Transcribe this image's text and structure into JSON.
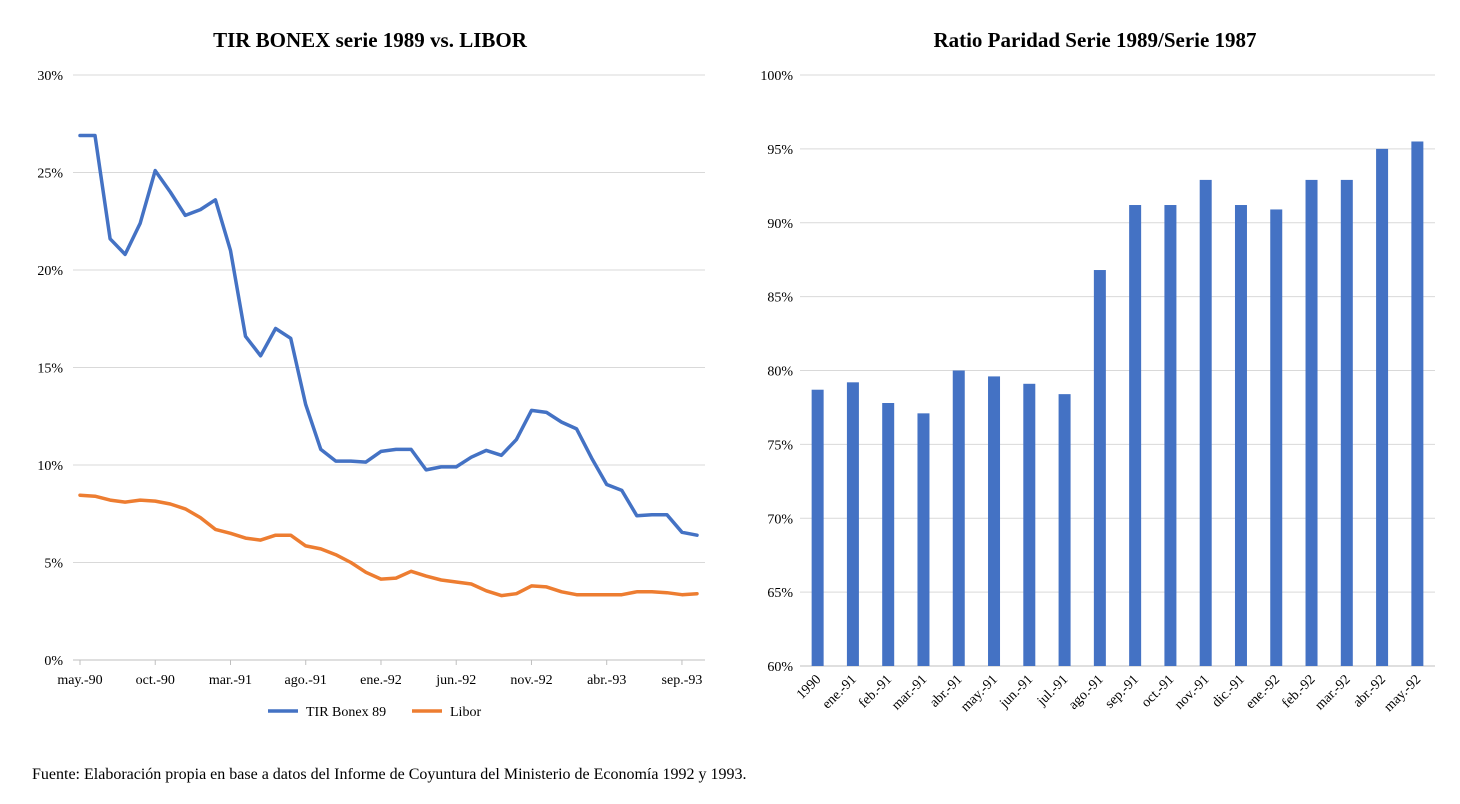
{
  "source_note": "Fuente: Elaboración propia en base a datos del Informe de Coyuntura del Ministerio de Economía 1992 y 1993.",
  "chart_data": [
    {
      "type": "line",
      "title": "TIR BONEX serie 1989 vs. LIBOR",
      "ylim": [
        0,
        30
      ],
      "yticks": [
        0,
        5,
        10,
        15,
        20,
        25,
        30
      ],
      "ytick_labels": [
        "0%",
        "5%",
        "10%",
        "15%",
        "20%",
        "25%",
        "30%"
      ],
      "x_tick_labels": [
        "may.-90",
        "oct.-90",
        "mar.-91",
        "ago.-91",
        "ene.-92",
        "jun.-92",
        "nov.-92",
        "abr.-93",
        "sep.-93"
      ],
      "x_tick_every": 5,
      "grid": "horizontal",
      "legend_position": "bottom",
      "series": [
        {
          "name": "TIR Bonex 89",
          "color": "#4472C4",
          "values": [
            26.9,
            26.9,
            21.6,
            20.8,
            22.4,
            25.1,
            24.0,
            22.8,
            23.1,
            23.6,
            21.0,
            16.6,
            15.6,
            17.0,
            16.5,
            13.1,
            10.8,
            10.2,
            10.2,
            10.15,
            10.7,
            10.8,
            10.8,
            9.75,
            9.9,
            9.9,
            10.4,
            10.75,
            10.5,
            11.3,
            12.8,
            12.7,
            12.2,
            11.85,
            10.35,
            9.0,
            8.7,
            7.4,
            7.45,
            7.45,
            6.55,
            6.4
          ]
        },
        {
          "name": "Libor",
          "color": "#ED7D31",
          "values": [
            8.45,
            8.4,
            8.2,
            8.1,
            8.2,
            8.15,
            8.0,
            7.75,
            7.3,
            6.7,
            6.5,
            6.25,
            6.15,
            6.4,
            6.4,
            5.85,
            5.7,
            5.4,
            5.0,
            4.5,
            4.15,
            4.2,
            4.55,
            4.3,
            4.1,
            4.0,
            3.9,
            3.55,
            3.3,
            3.4,
            3.8,
            3.75,
            3.5,
            3.35,
            3.35,
            3.35,
            3.35,
            3.5,
            3.5,
            3.45,
            3.35,
            3.4
          ]
        }
      ]
    },
    {
      "type": "bar",
      "title": "Ratio Paridad Serie 1989/Serie 1987",
      "ylim": [
        60,
        100
      ],
      "yticks": [
        60,
        65,
        70,
        75,
        80,
        85,
        90,
        95,
        100
      ],
      "ytick_labels": [
        "60%",
        "65%",
        "70%",
        "75%",
        "80%",
        "85%",
        "90%",
        "95%",
        "100%"
      ],
      "categories": [
        "1990",
        "ene.-91",
        "feb.-91",
        "mar.-91",
        "abr.-91",
        "may.-91",
        "jun.-91",
        "jul.-91",
        "ago.-91",
        "sep.-91",
        "oct.-91",
        "nov.-91",
        "dic.-91",
        "ene.-92",
        "feb.-92",
        "mar.-92",
        "abr.-92",
        "may.-92"
      ],
      "grid": "horizontal",
      "color": "#4472C4",
      "series": [
        {
          "values": [
            78.7,
            79.2,
            77.8,
            77.1,
            80.0,
            79.6,
            79.1,
            78.4,
            86.8,
            91.2,
            91.2,
            92.9,
            91.2,
            90.9,
            92.9,
            92.9,
            95.0,
            95.5
          ]
        }
      ]
    }
  ]
}
